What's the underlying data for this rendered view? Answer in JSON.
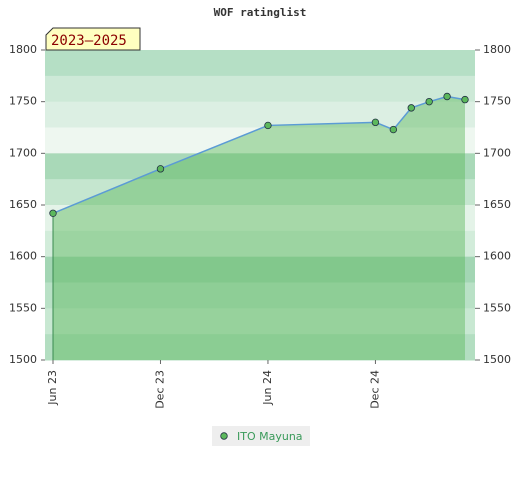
{
  "chart_data": {
    "type": "area",
    "title": "WOF ratinglist",
    "label": "2023–2025",
    "x": [
      "2023-06",
      "2023-12",
      "2024-06",
      "2024-12",
      "2025-01",
      "2025-02",
      "2025-03",
      "2025-04",
      "2025-05"
    ],
    "xlim": [
      "2023-06",
      "2025-05"
    ],
    "xticks": [
      {
        "value": "2023-06",
        "label": "Jun 23"
      },
      {
        "value": "2023-12",
        "label": "Dec 23"
      },
      {
        "value": "2024-06",
        "label": "Jun 24"
      },
      {
        "value": "2024-12",
        "label": "Dec 24"
      }
    ],
    "series": [
      {
        "name": "ITO Mayuna",
        "color": "#5cb85c",
        "line_color": "#5b9bd5",
        "values": [
          1642,
          1685,
          1727,
          1730,
          1723,
          1744,
          1750,
          1755,
          1752
        ]
      }
    ],
    "ylim": [
      1500,
      1800
    ],
    "yticks": [
      1500,
      1550,
      1600,
      1650,
      1700,
      1750,
      1800
    ],
    "y2lim": [
      1500,
      1800
    ],
    "y2ticks": [
      1500,
      1550,
      1600,
      1650,
      1700,
      1750,
      1800
    ]
  }
}
